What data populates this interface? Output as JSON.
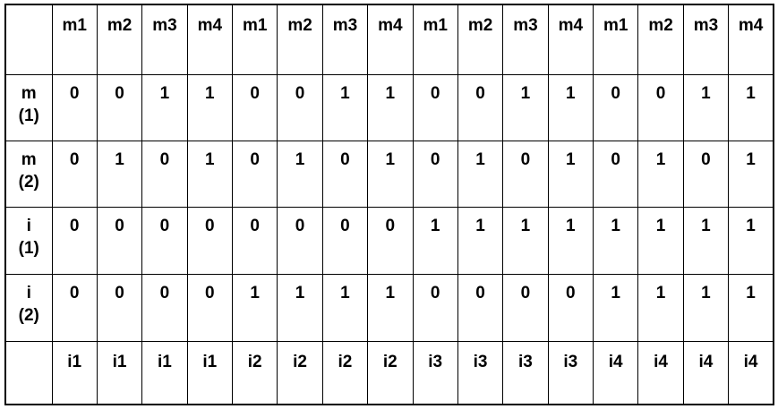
{
  "table": {
    "corner_label": "",
    "column_headers": [
      "m1",
      "m2",
      "m3",
      "m4",
      "m1",
      "m2",
      "m3",
      "m4",
      "m1",
      "m2",
      "m3",
      "m4",
      "m1",
      "m2",
      "m3",
      "m4"
    ],
    "rows": [
      {
        "label": "m\n(1)",
        "cells": [
          "0",
          "0",
          "1",
          "1",
          "0",
          "0",
          "1",
          "1",
          "0",
          "0",
          "1",
          "1",
          "0",
          "0",
          "1",
          "1"
        ]
      },
      {
        "label": "m\n(2)",
        "cells": [
          "0",
          "1",
          "0",
          "1",
          "0",
          "1",
          "0",
          "1",
          "0",
          "1",
          "0",
          "1",
          "0",
          "1",
          "0",
          "1"
        ]
      },
      {
        "label": "i\n(1)",
        "cells": [
          "0",
          "0",
          "0",
          "0",
          "0",
          "0",
          "0",
          "0",
          "1",
          "1",
          "1",
          "1",
          "1",
          "1",
          "1",
          "1"
        ]
      },
      {
        "label": "i\n(2)",
        "cells": [
          "0",
          "0",
          "0",
          "0",
          "1",
          "1",
          "1",
          "1",
          "0",
          "0",
          "0",
          "0",
          "1",
          "1",
          "1",
          "1"
        ]
      }
    ],
    "footer_label": "",
    "footer_cells": [
      "i1",
      "i1",
      "i1",
      "i1",
      "i2",
      "i2",
      "i2",
      "i2",
      "i3",
      "i3",
      "i3",
      "i3",
      "i4",
      "i4",
      "i4",
      "i4"
    ]
  }
}
